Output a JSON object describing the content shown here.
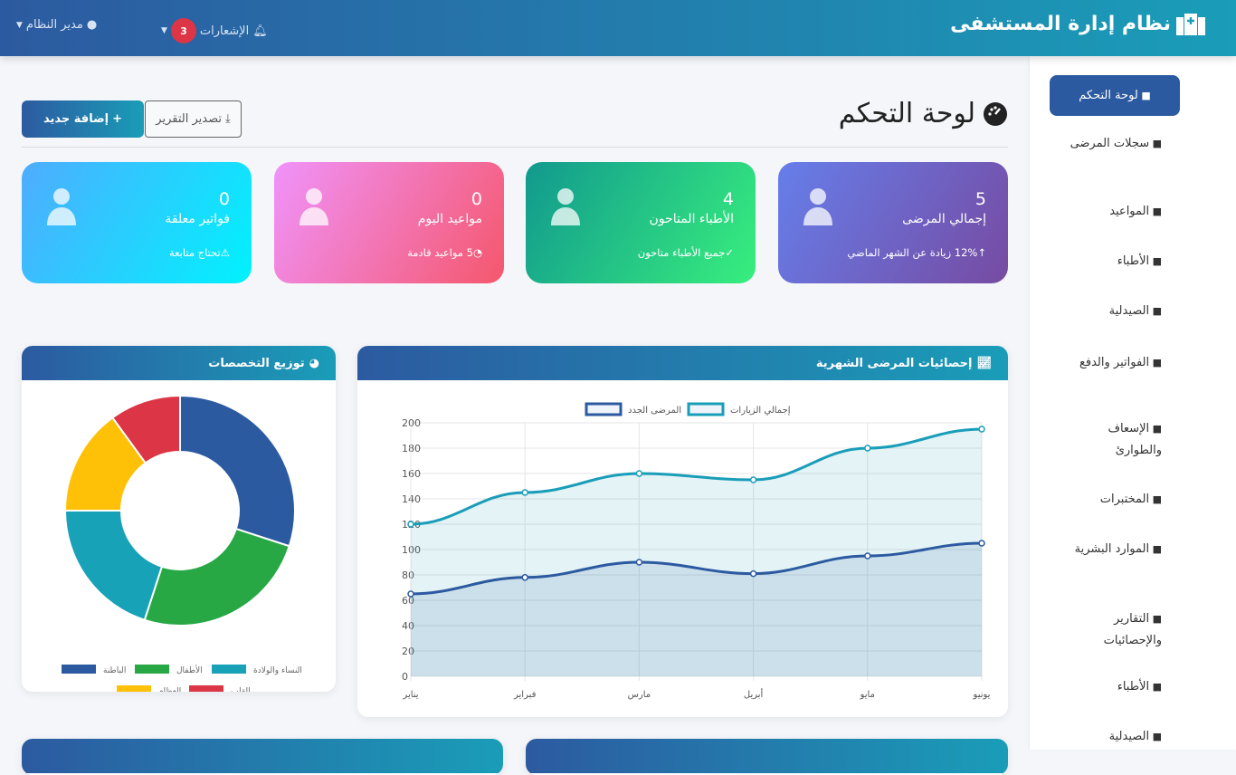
{
  "header": {
    "title": "نظام إدارة المستشفى",
    "notifications_label": "الإشعارات",
    "notifications_count": "3",
    "user_label": "مدير النظام"
  },
  "sidebar": {
    "items": [
      {
        "label": "لوحة التحكم",
        "icon": "gauge-icon",
        "active": true
      },
      {
        "label": "سجلات المرضى",
        "icon": "patient-icon"
      },
      {
        "label": "المواعيد",
        "icon": "calendar-check-icon"
      },
      {
        "label": "الأطباء",
        "icon": "doctor-icon"
      },
      {
        "label": "الصيدلية",
        "icon": "pills-icon"
      },
      {
        "label": "الفواتير والدفع",
        "icon": "invoice-icon"
      },
      {
        "label": "الإسعاف والطوارئ",
        "icon": "ambulance-icon"
      },
      {
        "label": "المختبرات",
        "icon": "flask-icon"
      },
      {
        "label": "الموارد البشرية",
        "icon": "users-icon"
      },
      {
        "label": "التقارير والإحصائيات",
        "icon": "report-icon"
      },
      {
        "label": "الأطباء",
        "icon": "doctor-icon"
      },
      {
        "label": "الصيدلية",
        "icon": "pills-icon"
      }
    ]
  },
  "page": {
    "title": "لوحة التحكم",
    "add_label": "إضافة جديد",
    "export_label": "تصدير التقرير"
  },
  "cards": [
    {
      "value": "5",
      "label": "إجمالي المرضى",
      "sub": "12% زيادة عن الشهر الماضي",
      "icon": "injured-patient-icon",
      "sub_icon": "arrow-up-icon"
    },
    {
      "value": "4",
      "label": "الأطباء المتاحون",
      "sub": "جميع الأطباء متاحون",
      "icon": "doctor-icon",
      "sub_icon": "check-icon"
    },
    {
      "value": "0",
      "label": "مواعيد اليوم",
      "sub": "5 مواعيد قادمة",
      "icon": "calendar-check-icon",
      "sub_icon": "clock-icon"
    },
    {
      "value": "0",
      "label": "فواتير معلقة",
      "sub": "تحتاج متابعة",
      "icon": "invoice-dollar-icon",
      "sub_icon": "warning-icon"
    }
  ],
  "line_panel_title": "إحصائيات المرضى الشهرية",
  "donut_panel_title": "توزيع التخصصات",
  "chart_data": [
    {
      "type": "line",
      "title": "إحصائيات المرضى الشهرية",
      "categories": [
        "يناير",
        "فبراير",
        "مارس",
        "أبريل",
        "مايو",
        "يونيو"
      ],
      "series": [
        {
          "name": "إجمالي الزيارات",
          "values": [
            120,
            145,
            160,
            155,
            180,
            195
          ],
          "color": "#1a9db8"
        },
        {
          "name": "المرضى الجدد",
          "values": [
            65,
            78,
            90,
            81,
            95,
            105
          ],
          "color": "#2c5aa0"
        }
      ],
      "ylim": [
        0,
        200
      ],
      "yticks": [
        0,
        20,
        40,
        60,
        80,
        100,
        120,
        140,
        160,
        180,
        200
      ],
      "legend": "top"
    },
    {
      "type": "pie",
      "title": "توزيع التخصصات",
      "labels": [
        "الباطنة",
        "الأطفال",
        "النساء والولادة",
        "العظام",
        "القلب"
      ],
      "values": [
        30,
        25,
        20,
        15,
        10
      ],
      "colors": [
        "#2c5aa0",
        "#28a745",
        "#17a2b8",
        "#ffc107",
        "#dc3545"
      ],
      "legend": "bottom"
    }
  ]
}
